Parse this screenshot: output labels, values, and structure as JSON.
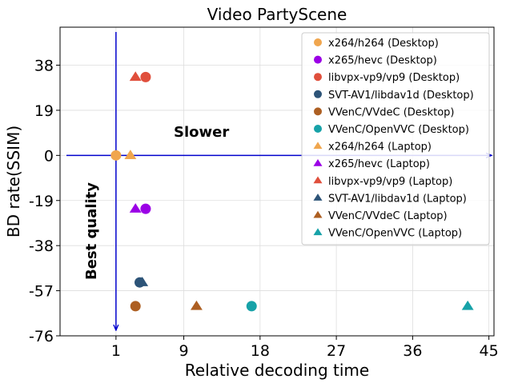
{
  "chart_data": {
    "type": "scatter",
    "title": "Video PartyScene",
    "xlabel": "Relative decoding time",
    "ylabel": "BD rate(SSIM)",
    "xlim": [
      -5.6,
      45.6
    ],
    "ylim": [
      -76,
      54
    ],
    "xticks": [
      1,
      9,
      18,
      27,
      36,
      45
    ],
    "yticks": [
      38,
      19,
      0,
      -19,
      -38,
      -57,
      -76
    ],
    "grid": true,
    "legend_position": "top-right",
    "annotations": {
      "horizontal": "Slower",
      "vertical": "Best quality"
    },
    "series": [
      {
        "name": "x264/h264 (Desktop)",
        "marker": "circle",
        "color": "#f0a64e",
        "x": 1.0,
        "y": 0.0
      },
      {
        "name": "x265/hevc (Desktop)",
        "marker": "circle",
        "color": "#9b00e6",
        "x": 4.5,
        "y": -22.5
      },
      {
        "name": "libvpx-vp9/vp9 (Desktop)",
        "marker": "circle",
        "color": "#e04f3c",
        "x": 4.5,
        "y": 33.0
      },
      {
        "name": "SVT-AV1/libdav1d (Desktop)",
        "marker": "circle",
        "color": "#2d5478",
        "x": 3.8,
        "y": -53.5
      },
      {
        "name": "VVenC/VVdeC (Desktop)",
        "marker": "circle",
        "color": "#ad5f22",
        "x": 3.3,
        "y": -63.5
      },
      {
        "name": "VVenC/OpenVVC (Desktop)",
        "marker": "circle",
        "color": "#17a2a8",
        "x": 17.0,
        "y": -63.5
      },
      {
        "name": "x264/h264 (Laptop)",
        "marker": "triangle",
        "color": "#f0a64e",
        "x": 2.7,
        "y": 0.0
      },
      {
        "name": "x265/hevc (Laptop)",
        "marker": "triangle",
        "color": "#9b00e6",
        "x": 3.3,
        "y": -22.5
      },
      {
        "name": "libvpx-vp9/vp9 (Laptop)",
        "marker": "triangle",
        "color": "#e04f3c",
        "x": 3.3,
        "y": 33.0
      },
      {
        "name": "SVT-AV1/libdav1d (Laptop)",
        "marker": "triangle",
        "color": "#2d5478",
        "x": 4.1,
        "y": -53.5
      },
      {
        "name": "VVenC/VVdeC (Laptop)",
        "marker": "triangle",
        "color": "#ad5f22",
        "x": 10.5,
        "y": -63.5
      },
      {
        "name": "VVenC/OpenVVC (Laptop)",
        "marker": "triangle",
        "color": "#17a2a8",
        "x": 42.5,
        "y": -63.5
      }
    ]
  }
}
